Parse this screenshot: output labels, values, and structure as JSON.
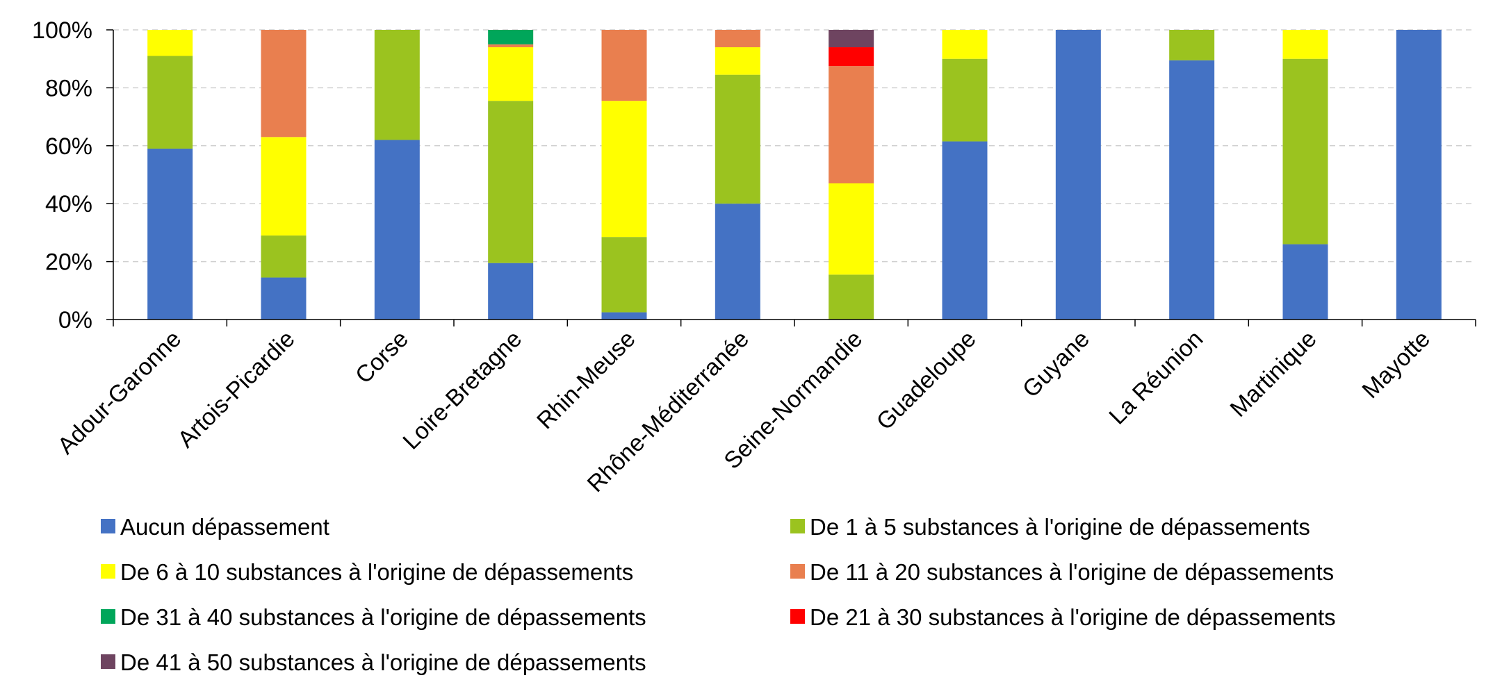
{
  "chart_data": {
    "type": "bar",
    "stacked": true,
    "normalized": true,
    "title": "",
    "xlabel": "",
    "ylabel": "",
    "ylim": [
      0,
      100
    ],
    "y_ticks": [
      "0%",
      "20%",
      "40%",
      "60%",
      "80%",
      "100%"
    ],
    "grid": "horizontal dashed",
    "legend_position": "bottom",
    "categories": [
      "Adour-Garonne",
      "Artois-Picardie",
      "Corse",
      "Loire-Bretagne",
      "Rhin-Meuse",
      "Rhône-Méditerranée",
      "Seine-Normandie",
      "Guadeloupe",
      "Guyane",
      "La Réunion",
      "Martinique",
      "Mayotte"
    ],
    "series": [
      {
        "name": "Aucun dépassement",
        "color": "#4472C4",
        "values": [
          59,
          14.5,
          62,
          19.5,
          2.5,
          40,
          0,
          61.5,
          100,
          89.5,
          26,
          100
        ]
      },
      {
        "name": "De 1 à 5 substances à l'origine de dépassements",
        "color": "#9BC31F",
        "values": [
          32,
          14.5,
          38,
          56,
          26,
          44.5,
          15.5,
          28.5,
          0,
          10.5,
          64,
          0
        ]
      },
      {
        "name": "De 6 à 10 substances à l'origine de dépassements",
        "color": "#FFFF00",
        "values": [
          9,
          34,
          0,
          18.5,
          47,
          9.5,
          31.5,
          10,
          0,
          0,
          10,
          0
        ]
      },
      {
        "name": "De 11 à 20 substances à l'origine de dépassements",
        "color": "#E97F4F",
        "values": [
          0,
          37,
          0,
          1,
          24.5,
          6,
          40.5,
          0,
          0,
          0,
          0,
          0
        ]
      },
      {
        "name": "De 21 à 30 substances à l'origine de dépassements",
        "color": "#FF0000",
        "values": [
          0,
          0,
          0,
          0,
          0,
          0,
          6.5,
          0,
          0,
          0,
          0,
          0
        ]
      },
      {
        "name": "De 31 à 40 substances à l'origine de dépassements",
        "color": "#00A65A",
        "values": [
          0,
          0,
          0,
          5,
          0,
          0,
          0,
          0,
          0,
          0,
          0,
          0
        ]
      },
      {
        "name": "De 41 à 50 substances à l'origine de dépassements",
        "color": "#6E4460",
        "values": [
          0,
          0,
          0,
          0,
          0,
          0,
          6,
          0,
          0,
          0,
          0,
          0
        ]
      }
    ],
    "legend_order": [
      0,
      1,
      2,
      3,
      5,
      4,
      6
    ]
  }
}
